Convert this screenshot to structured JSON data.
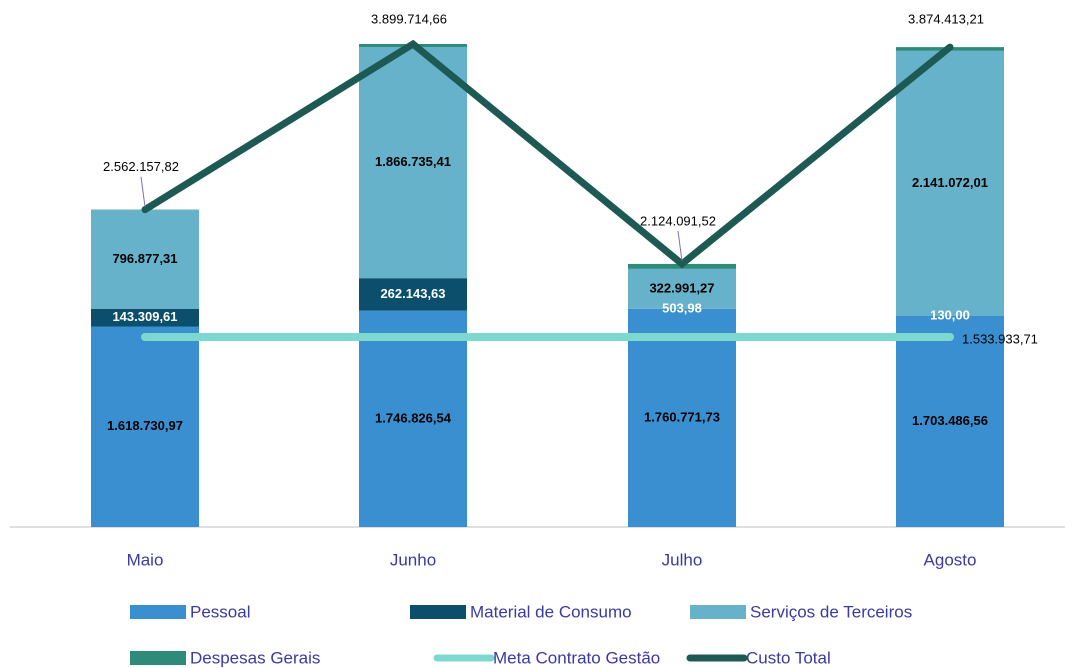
{
  "chart_data": {
    "type": "bar",
    "categories": [
      "Maio",
      "Junho",
      "Julho",
      "Agosto"
    ],
    "series": [
      {
        "name": "Pessoal",
        "type": "bar",
        "color": "#3a8fd0",
        "values": [
          1618730.97,
          1746826.54,
          1760771.73,
          1703486.56
        ],
        "value_labels": [
          "1.618.730,97",
          "1.746.826,54",
          "1.760.771,73",
          "1.703.486,56"
        ]
      },
      {
        "name": "Material de Consumo",
        "type": "bar",
        "color": "#0b4f6c",
        "values": [
          143309.61,
          262143.63,
          503.98,
          130.0
        ],
        "value_labels": [
          "143.309,61",
          "262.143,63",
          "503,98",
          "130,00"
        ]
      },
      {
        "name": "Serviços de Terceiros",
        "type": "bar",
        "color": "#67b2cb",
        "values": [
          796877.31,
          1866735.41,
          322991.27,
          2141072.01
        ],
        "value_labels": [
          "796.877,31",
          "1.866.735,41",
          "322.991,27",
          "2.141.072,01"
        ]
      },
      {
        "name": "Despesas Gerais",
        "type": "bar",
        "color": "#2e8b7a",
        "values": [
          3239.93,
          24009.08,
          39824.54,
          29724.64
        ]
      },
      {
        "name": "Meta Contrato Gestão",
        "type": "line",
        "color": "#7dd8d0",
        "values": [
          1533933.71,
          1533933.71,
          1533933.71,
          1533933.71
        ],
        "value_labels": [
          null,
          null,
          null,
          "1.533.933,71"
        ]
      },
      {
        "name": "Custo Total",
        "type": "line",
        "color": "#1d5a53",
        "values": [
          2562157.82,
          3899714.66,
          2124091.52,
          3874413.21
        ],
        "value_labels": [
          "2.562.157,82",
          "3.899.714,66",
          "2.124.091,52",
          "3.874.413,21"
        ]
      }
    ]
  }
}
